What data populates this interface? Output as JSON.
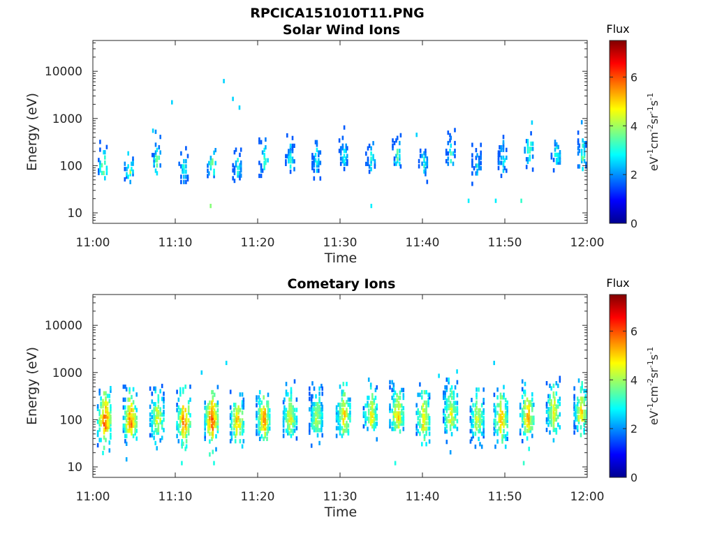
{
  "figure_title": "RPCICA151010T11.PNG",
  "colormap": "jet",
  "chart_data": [
    {
      "type": "heatmap",
      "title": "Solar Wind Ions",
      "xlabel": "Time",
      "ylabel": "Energy (eV)",
      "yscale": "log",
      "ylim": [
        6,
        45000
      ],
      "xlim_minutes": [
        0,
        60
      ],
      "x_tick_labels": [
        "11:00",
        "11:10",
        "11:20",
        "11:30",
        "11:40",
        "11:50",
        "12:00"
      ],
      "y_tick_values": [
        10,
        100,
        1000,
        10000
      ],
      "y_tick_labels": [
        "10",
        "100",
        "1000",
        "10000"
      ],
      "colorbar": {
        "label": "Flux",
        "unit": "eV-1cm-2sr-1s-1",
        "range": [
          0,
          7.5
        ],
        "ticks": [
          "0",
          "2",
          "4",
          "6"
        ]
      },
      "bursts": [
        {
          "t": 1.3,
          "e": 90,
          "peak": 4.2
        },
        {
          "t": 4.5,
          "e": 85,
          "peak": 3.8
        },
        {
          "t": 7.8,
          "e": 130,
          "peak": 3.6
        },
        {
          "t": 11.1,
          "e": 85,
          "peak": 3.0
        },
        {
          "t": 14.5,
          "e": 100,
          "peak": 3.8
        },
        {
          "t": 17.6,
          "e": 90,
          "peak": 3.0
        },
        {
          "t": 20.8,
          "e": 130,
          "peak": 3.4
        },
        {
          "t": 24.0,
          "e": 140,
          "peak": 3.0
        },
        {
          "t": 27.2,
          "e": 130,
          "peak": 2.9
        },
        {
          "t": 30.5,
          "e": 160,
          "peak": 3.0
        },
        {
          "t": 33.8,
          "e": 140,
          "peak": 2.9
        },
        {
          "t": 37.0,
          "e": 160,
          "peak": 3.3
        },
        {
          "t": 40.2,
          "e": 110,
          "peak": 2.8
        },
        {
          "t": 43.5,
          "e": 160,
          "peak": 3.0
        },
        {
          "t": 46.7,
          "e": 100,
          "peak": 2.7
        },
        {
          "t": 49.8,
          "e": 130,
          "peak": 2.8
        },
        {
          "t": 53.0,
          "e": 200,
          "peak": 3.6
        },
        {
          "t": 56.3,
          "e": 170,
          "peak": 3.2
        },
        {
          "t": 59.5,
          "e": 160,
          "peak": 3.6
        }
      ],
      "outliers": [
        {
          "t": 9.6,
          "e": 2200,
          "flux": 2.5
        },
        {
          "t": 15.9,
          "e": 6200,
          "flux": 2.5
        },
        {
          "t": 17.0,
          "e": 2600,
          "flux": 2.5
        },
        {
          "t": 17.8,
          "e": 1700,
          "flux": 2.5
        },
        {
          "t": 14.3,
          "e": 14,
          "flux": 3.8
        },
        {
          "t": 33.8,
          "e": 14,
          "flux": 2.7
        },
        {
          "t": 45.6,
          "e": 18,
          "flux": 2.7
        },
        {
          "t": 48.9,
          "e": 18,
          "flux": 2.7
        },
        {
          "t": 52.0,
          "e": 18,
          "flux": 3.2
        },
        {
          "t": 7.3,
          "e": 550,
          "flux": 2.5
        },
        {
          "t": 39.3,
          "e": 450,
          "flux": 2.5
        },
        {
          "t": 53.3,
          "e": 820,
          "flux": 2.5
        }
      ]
    },
    {
      "type": "heatmap",
      "title": "Cometary Ions",
      "xlabel": "Time",
      "ylabel": "Energy (eV)",
      "yscale": "log",
      "ylim": [
        6,
        45000
      ],
      "xlim_minutes": [
        0,
        60
      ],
      "x_tick_labels": [
        "11:00",
        "11:10",
        "11:20",
        "11:30",
        "11:40",
        "11:50",
        "12:00"
      ],
      "y_tick_values": [
        10,
        100,
        1000,
        10000
      ],
      "y_tick_labels": [
        "10",
        "100",
        "1000",
        "10000"
      ],
      "colorbar": {
        "label": "Flux",
        "unit": "eV-1cm-2sr-1s-1",
        "range": [
          0,
          7.5
        ],
        "ticks": [
          "0",
          "2",
          "4",
          "6"
        ]
      },
      "bursts": [
        {
          "t": 1.5,
          "e": 90,
          "peak": 6.2
        },
        {
          "t": 4.6,
          "e": 85,
          "peak": 5.8
        },
        {
          "t": 7.9,
          "e": 100,
          "peak": 4.8
        },
        {
          "t": 11.1,
          "e": 85,
          "peak": 5.9
        },
        {
          "t": 14.5,
          "e": 95,
          "peak": 6.3
        },
        {
          "t": 17.6,
          "e": 85,
          "peak": 5.2
        },
        {
          "t": 20.8,
          "e": 95,
          "peak": 5.6
        },
        {
          "t": 24.0,
          "e": 110,
          "peak": 4.8
        },
        {
          "t": 27.2,
          "e": 100,
          "peak": 4.4
        },
        {
          "t": 30.5,
          "e": 110,
          "peak": 5.2
        },
        {
          "t": 33.8,
          "e": 120,
          "peak": 4.8
        },
        {
          "t": 37.0,
          "e": 120,
          "peak": 5.2
        },
        {
          "t": 40.2,
          "e": 95,
          "peak": 5.2
        },
        {
          "t": 43.5,
          "e": 120,
          "peak": 4.8
        },
        {
          "t": 46.7,
          "e": 95,
          "peak": 4.6
        },
        {
          "t": 49.6,
          "e": 95,
          "peak": 5.4
        },
        {
          "t": 52.8,
          "e": 110,
          "peak": 5.4
        },
        {
          "t": 56.0,
          "e": 130,
          "peak": 5.0
        },
        {
          "t": 59.3,
          "e": 130,
          "peak": 5.0
        }
      ],
      "outliers": [
        {
          "t": 13.2,
          "e": 1000,
          "flux": 2.5
        },
        {
          "t": 16.2,
          "e": 1600,
          "flux": 2.6
        },
        {
          "t": 42.0,
          "e": 850,
          "flux": 2.6
        },
        {
          "t": 44.2,
          "e": 1050,
          "flux": 2.6
        },
        {
          "t": 48.7,
          "e": 1600,
          "flux": 2.5
        },
        {
          "t": 10.8,
          "e": 12,
          "flux": 3.0
        },
        {
          "t": 14.7,
          "e": 12,
          "flux": 3.0
        },
        {
          "t": 36.7,
          "e": 12,
          "flux": 3.0
        },
        {
          "t": 52.3,
          "e": 12,
          "flux": 3.2
        }
      ]
    }
  ]
}
